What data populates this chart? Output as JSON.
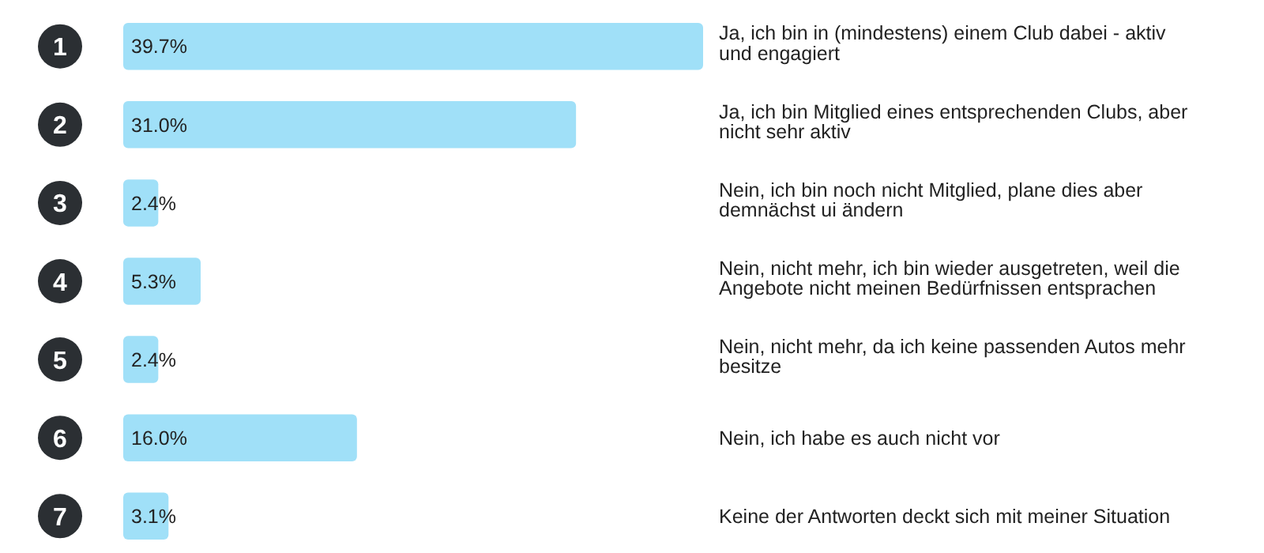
{
  "chart_data": {
    "type": "bar",
    "orientation": "horizontal",
    "categories": [
      "1",
      "2",
      "3",
      "4",
      "5",
      "6",
      "7"
    ],
    "values": [
      39.7,
      31.0,
      2.4,
      5.3,
      2.4,
      16.0,
      3.1
    ],
    "value_labels": [
      "39.7%",
      "31.0%",
      "2.4%",
      "5.3%",
      "2.4%",
      "16.0%",
      "3.1%"
    ],
    "color": "#a0e0f8",
    "annotations": [
      "Ja, ich bin in (mindestens) einem Club dabei - aktiv und engagiert",
      "Ja, ich bin Mitglied eines entsprechenden Clubs, aber nicht sehr aktiv",
      "Nein, ich bin noch nicht Mitglied, plane dies aber demnächst ui ändern",
      "Nein, nicht mehr, ich bin wieder ausgetreten, weil die Angebote nicht meinen Bedürfnissen entsprachen",
      "Nein, nicht mehr, da ich keine passenden Autos mehr besitze",
      "Nein, ich habe es auch nicht vor",
      "Keine der Antworten deckt sich mit meiner Situation"
    ]
  }
}
